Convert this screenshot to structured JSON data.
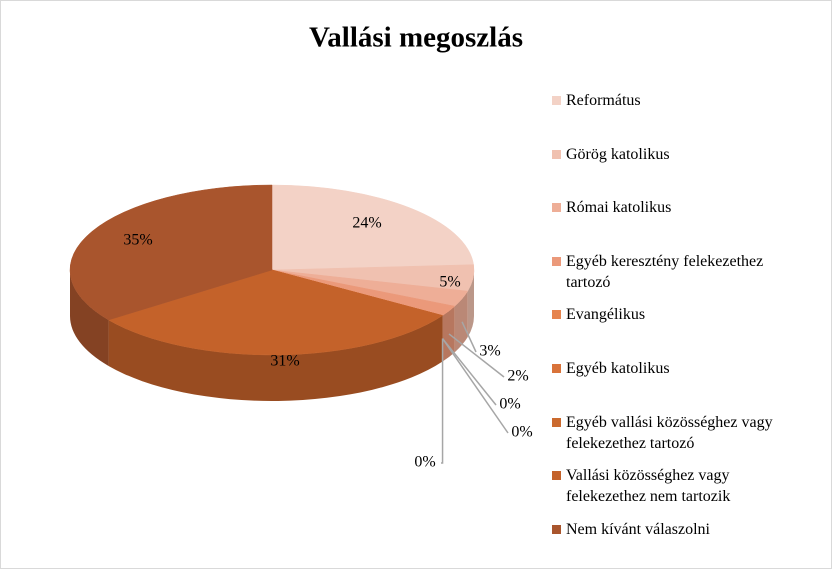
{
  "chart_data": {
    "type": "pie",
    "title": "Vallási megoszlás",
    "categories": [
      "Református",
      "Görög katolikus",
      "Római katolikus",
      "Egyéb keresztény felekezethez tartozó",
      "Evangélikus",
      "Egyéb katolikus",
      "Egyéb vallási közösséghez vagy felekezethez tartozó",
      "Vallási közösséghez vagy felekezethez nem tartozik",
      "Nem kívánt válaszolni"
    ],
    "values": [
      24,
      5,
      3,
      2,
      0,
      0,
      0,
      31,
      35
    ],
    "value_labels": [
      "24%",
      "5%",
      "3%",
      "2%",
      "0%",
      "0%",
      "0%",
      "31%",
      "35%"
    ],
    "colors": [
      "#f3d2c6",
      "#f0c1b0",
      "#eeae97",
      "#eb997a",
      "#e6844f",
      "#d9733a",
      "#cb6a2e",
      "#c4622a",
      "#a9552d"
    ],
    "legend": "right"
  }
}
